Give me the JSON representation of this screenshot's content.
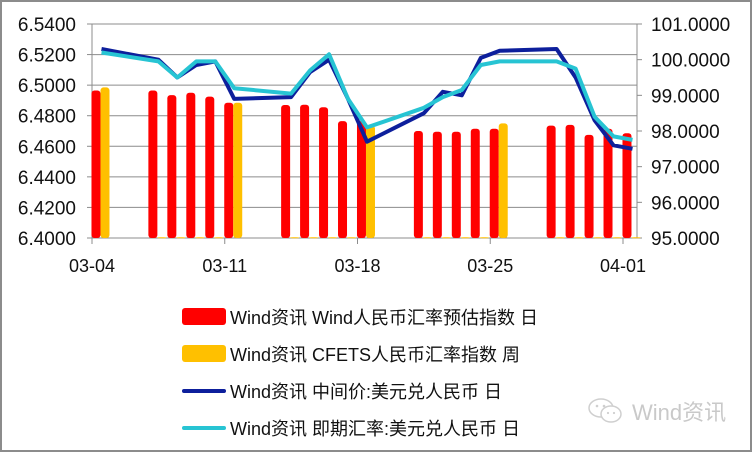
{
  "chart_data": {
    "type": "bar",
    "title": "",
    "xlabel": "",
    "ylabel": "",
    "ylabel_right": "",
    "ylim": [
      6.4,
      6.54
    ],
    "ylim_right": [
      95,
      101
    ],
    "grid": true,
    "legend_position": "bottom",
    "y_ticks": [
      "6.5400",
      "6.5200",
      "6.5000",
      "6.4800",
      "6.4600",
      "6.4400",
      "6.4200",
      "6.4000"
    ],
    "y_ticks_right": [
      "101.0000",
      "100.0000",
      "99.0000",
      "98.0000",
      "97.0000",
      "96.0000",
      "95.0000"
    ],
    "x_tick_labels": [
      "03-04",
      "03-11",
      "03-18",
      "03-25",
      "04-01"
    ],
    "categories": [
      "03-04",
      "03-07",
      "03-08",
      "03-09",
      "03-10",
      "03-11",
      "03-14",
      "03-15",
      "03-16",
      "03-17",
      "03-18",
      "03-21",
      "03-22",
      "03-23",
      "03-24",
      "03-25",
      "03-28",
      "03-29",
      "03-30",
      "03-31",
      "04-01"
    ],
    "day_offsets": [
      0,
      3,
      4,
      5,
      6,
      7,
      10,
      11,
      12,
      13,
      14,
      17,
      18,
      19,
      20,
      21,
      24,
      25,
      26,
      27,
      28
    ],
    "series": [
      {
        "name": "Wind资讯 Wind人民币汇率预估指数 日",
        "type": "bar",
        "axis": "left",
        "color": "#ff0000",
        "values": [
          6.4965,
          6.4965,
          6.4935,
          6.495,
          6.4925,
          6.4885,
          6.487,
          6.4872,
          6.4855,
          6.4765,
          6.4765,
          6.47,
          6.4695,
          6.4695,
          6.4715,
          6.4715,
          6.4735,
          6.474,
          6.4675,
          6.4715,
          6.4685
        ]
      },
      {
        "name": "Wind资讯 CFETS人民币汇率指数 周",
        "type": "bar",
        "axis": "left",
        "color": "#ffc000",
        "values": [
          6.4985,
          6.4005,
          6.4005,
          6.4005,
          6.4005,
          6.4885,
          6.4005,
          6.4005,
          6.4005,
          6.4005,
          6.4735,
          6.4005,
          6.4005,
          6.4005,
          6.4005,
          6.475,
          6.4005,
          6.4005,
          6.4005,
          6.4005,
          6.4005
        ]
      },
      {
        "name": "Wind资讯 中间价:美元兑人民币 日",
        "type": "line",
        "axis": "right",
        "color": "#0d1f9c",
        "values": [
          100.3,
          100.0,
          99.5,
          99.85,
          99.95,
          98.9,
          98.95,
          99.65,
          100.0,
          98.9,
          97.7,
          98.5,
          99.1,
          99.0,
          100.05,
          100.25,
          100.3,
          99.5,
          98.3,
          97.6,
          97.5
        ]
      },
      {
        "name": "Wind资讯 即期汇率:美元兑人民币 日",
        "type": "line",
        "axis": "right",
        "color": "#27c4d3",
        "values": [
          100.2,
          99.95,
          99.5,
          99.95,
          99.95,
          99.2,
          99.05,
          99.7,
          100.15,
          98.9,
          98.1,
          98.65,
          98.95,
          99.15,
          99.85,
          99.95,
          99.95,
          99.75,
          98.4,
          97.85,
          97.75
        ]
      }
    ]
  },
  "legend": {
    "items": [
      {
        "label": "Wind资讯 Wind人民币汇率预估指数 日",
        "color": "#ff0000",
        "kind": "bar"
      },
      {
        "label": "Wind资讯 CFETS人民币汇率指数 周",
        "color": "#ffc000",
        "kind": "bar"
      },
      {
        "label": "Wind资讯 中间价:美元兑人民币 日",
        "color": "#0d1f9c",
        "kind": "line"
      },
      {
        "label": "Wind资讯 即期汇率:美元兑人民币 日",
        "color": "#27c4d3",
        "kind": "line"
      }
    ]
  },
  "watermark": {
    "icon": "wechat-icon",
    "text": "Wind资讯"
  }
}
